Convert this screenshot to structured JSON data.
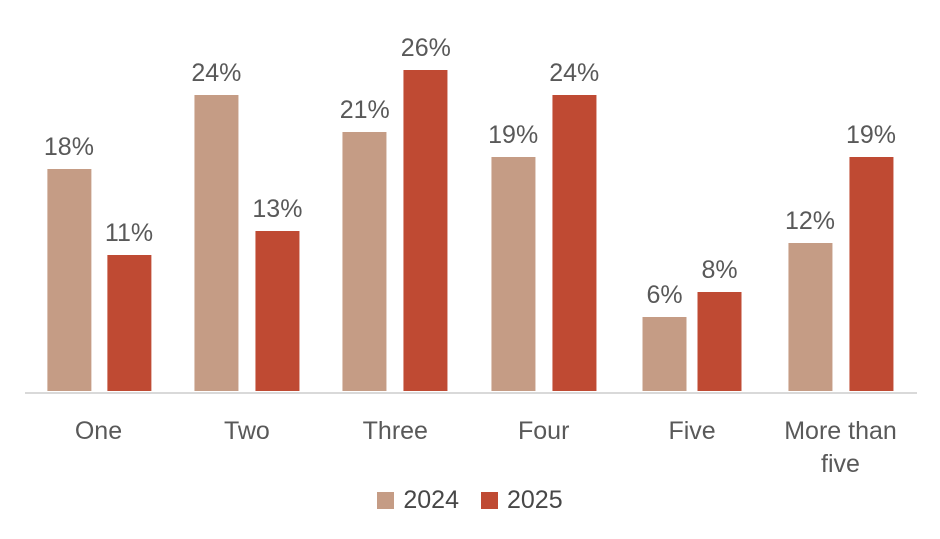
{
  "chart_data": {
    "type": "bar",
    "title": "",
    "categories": [
      "One",
      "Two",
      "Three",
      "Four",
      "Five",
      "More than five"
    ],
    "series": [
      {
        "name": "2024",
        "color": "#c59c85",
        "values": [
          18,
          24,
          21,
          19,
          6,
          12
        ]
      },
      {
        "name": "2025",
        "color": "#bf4a33",
        "values": [
          11,
          13,
          26,
          24,
          8,
          19
        ]
      }
    ],
    "value_suffix": "%",
    "xlabel": "",
    "ylabel": "",
    "ylim": [
      0,
      31
    ],
    "grid": false,
    "data_labels": true,
    "legend_position": "bottom",
    "axis_line_color": "#d9d9d9",
    "label_color": "#595959",
    "legend_text_color": "#474747",
    "background_color": "#ffffff"
  }
}
